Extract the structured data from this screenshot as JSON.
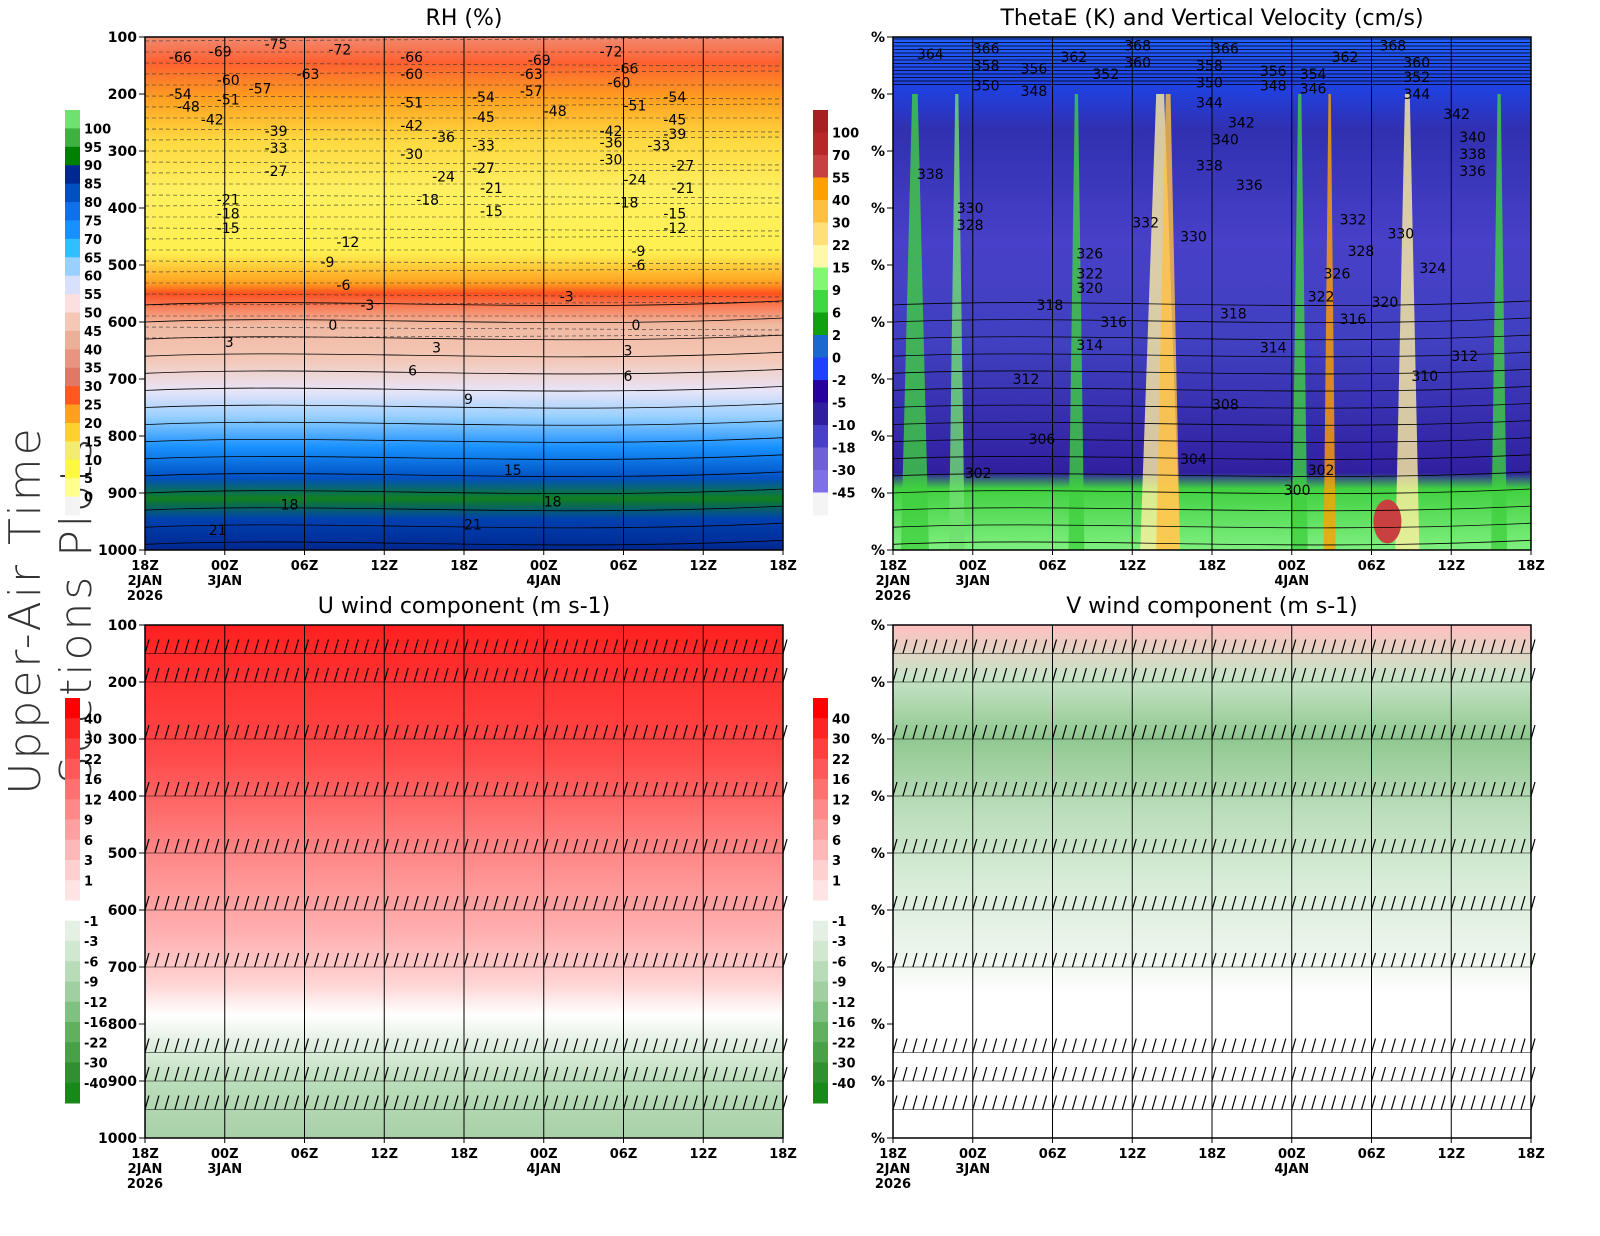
{
  "figure": {
    "side_title": "Upper-Air Time Sections Plots"
  },
  "time_ticks": [
    "18Z",
    "00Z",
    "06Z",
    "12Z",
    "18Z",
    "00Z",
    "06Z",
    "12Z",
    "18Z"
  ],
  "date_labels": [
    {
      "tick": 0,
      "lines": [
        "2JAN",
        "2026"
      ]
    },
    {
      "tick": 1,
      "lines": [
        "3JAN"
      ]
    },
    {
      "tick": 5,
      "lines": [
        "4JAN"
      ]
    }
  ],
  "chart_data": [
    {
      "type": "heatmap",
      "title": "RH (%)",
      "y_ticks": [
        "100",
        "200",
        "300",
        "400",
        "500",
        "600",
        "700",
        "800",
        "900",
        "1000"
      ],
      "ylim": [
        100,
        1000
      ],
      "colorbar": {
        "labels": [
          "100",
          "95",
          "90",
          "85",
          "80",
          "75",
          "70",
          "65",
          "60",
          "55",
          "50",
          "45",
          "40",
          "35",
          "30",
          "25",
          "20",
          "15",
          "10",
          "5",
          "0"
        ],
        "colors": [
          "#70e070",
          "#40b040",
          "#008000",
          "#002890",
          "#0050c0",
          "#1070e8",
          "#1890ff",
          "#30c0ff",
          "#98d0ff",
          "#d8e0fc",
          "#fce0e0",
          "#f4c8b4",
          "#ecb098",
          "#e89480",
          "#e07868",
          "#ff5820",
          "#ffa020",
          "#ffd030",
          "#f4ec70",
          "#fff840",
          "#ffff90",
          "#f4f4f4"
        ]
      },
      "contour_labels": [
        {
          "t": 0.3,
          "p": 135,
          "v": "-66"
        },
        {
          "t": 0.8,
          "p": 125,
          "v": "-69"
        },
        {
          "t": 1.5,
          "p": 112,
          "v": "-75"
        },
        {
          "t": 2.3,
          "p": 122,
          "v": "-72"
        },
        {
          "t": 1.9,
          "p": 165,
          "v": "-63"
        },
        {
          "t": 0.9,
          "p": 175,
          "v": "-60"
        },
        {
          "t": 1.3,
          "p": 190,
          "v": "-57"
        },
        {
          "t": 0.3,
          "p": 200,
          "v": "-54"
        },
        {
          "t": 0.9,
          "p": 210,
          "v": "-51"
        },
        {
          "t": 0.4,
          "p": 222,
          "v": "-48"
        },
        {
          "t": 0.7,
          "p": 245,
          "v": "-42"
        },
        {
          "t": 1.5,
          "p": 265,
          "v": "-39"
        },
        {
          "t": 1.5,
          "p": 295,
          "v": "-33"
        },
        {
          "t": 1.5,
          "p": 335,
          "v": "-27"
        },
        {
          "t": 3.2,
          "p": 135,
          "v": "-66"
        },
        {
          "t": 3.2,
          "p": 165,
          "v": "-60"
        },
        {
          "t": 3.2,
          "p": 215,
          "v": "-51"
        },
        {
          "t": 3.2,
          "p": 255,
          "v": "-42"
        },
        {
          "t": 3.6,
          "p": 275,
          "v": "-36"
        },
        {
          "t": 3.2,
          "p": 305,
          "v": "-30"
        },
        {
          "t": 3.6,
          "p": 345,
          "v": "-24"
        },
        {
          "t": 3.4,
          "p": 385,
          "v": "-18"
        },
        {
          "t": 4.1,
          "p": 205,
          "v": "-54"
        },
        {
          "t": 4.1,
          "p": 240,
          "v": "-45"
        },
        {
          "t": 4.1,
          "p": 290,
          "v": "-33"
        },
        {
          "t": 4.1,
          "p": 330,
          "v": "-27"
        },
        {
          "t": 4.2,
          "p": 365,
          "v": "-21"
        },
        {
          "t": 4.2,
          "p": 405,
          "v": "-15"
        },
        {
          "t": 4.8,
          "p": 140,
          "v": "-69"
        },
        {
          "t": 4.7,
          "p": 165,
          "v": "-63"
        },
        {
          "t": 4.7,
          "p": 195,
          "v": "-57"
        },
        {
          "t": 5.0,
          "p": 230,
          "v": "-48"
        },
        {
          "t": 5.7,
          "p": 125,
          "v": "-72"
        },
        {
          "t": 5.9,
          "p": 155,
          "v": "-66"
        },
        {
          "t": 5.8,
          "p": 180,
          "v": "-60"
        },
        {
          "t": 6.0,
          "p": 220,
          "v": "-51"
        },
        {
          "t": 6.5,
          "p": 205,
          "v": "-54"
        },
        {
          "t": 6.5,
          "p": 245,
          "v": "-45"
        },
        {
          "t": 6.5,
          "p": 270,
          "v": "-39"
        },
        {
          "t": 6.3,
          "p": 290,
          "v": "-33"
        },
        {
          "t": 6.6,
          "p": 325,
          "v": "-27"
        },
        {
          "t": 5.7,
          "p": 265,
          "v": "-42"
        },
        {
          "t": 5.7,
          "p": 285,
          "v": "-36"
        },
        {
          "t": 5.7,
          "p": 315,
          "v": "-30"
        },
        {
          "t": 6.0,
          "p": 350,
          "v": "-24"
        },
        {
          "t": 6.6,
          "p": 365,
          "v": "-21"
        },
        {
          "t": 5.9,
          "p": 390,
          "v": "-18"
        },
        {
          "t": 6.5,
          "p": 410,
          "v": "-15"
        },
        {
          "t": 6.5,
          "p": 435,
          "v": "-12"
        },
        {
          "t": 6.1,
          "p": 475,
          "v": "-9"
        },
        {
          "t": 6.1,
          "p": 500,
          "v": "-6"
        },
        {
          "t": 0.9,
          "p": 385,
          "v": "-21"
        },
        {
          "t": 0.9,
          "p": 410,
          "v": "-18"
        },
        {
          "t": 0.9,
          "p": 435,
          "v": "-15"
        },
        {
          "t": 2.4,
          "p": 460,
          "v": "-12"
        },
        {
          "t": 2.2,
          "p": 495,
          "v": "-9"
        },
        {
          "t": 2.4,
          "p": 535,
          "v": "-6"
        },
        {
          "t": 2.7,
          "p": 570,
          "v": "-3"
        },
        {
          "t": 5.2,
          "p": 555,
          "v": "-3"
        },
        {
          "t": 2.3,
          "p": 605,
          "v": "0"
        },
        {
          "t": 6.1,
          "p": 605,
          "v": "0"
        },
        {
          "t": 1.0,
          "p": 635,
          "v": "3"
        },
        {
          "t": 3.6,
          "p": 645,
          "v": "3"
        },
        {
          "t": 6.0,
          "p": 650,
          "v": "3"
        },
        {
          "t": 3.3,
          "p": 685,
          "v": "6"
        },
        {
          "t": 6.0,
          "p": 695,
          "v": "6"
        },
        {
          "t": 4.0,
          "p": 735,
          "v": "9"
        },
        {
          "t": 4.5,
          "p": 860,
          "v": "15"
        },
        {
          "t": 1.7,
          "p": 920,
          "v": "18"
        },
        {
          "t": 5.0,
          "p": 915,
          "v": "18"
        },
        {
          "t": 0.8,
          "p": 965,
          "v": "21"
        },
        {
          "t": 4.0,
          "p": 955,
          "v": "21"
        }
      ]
    },
    {
      "type": "heatmap",
      "title": "ThetaE (K) and Vertical Velocity (cm/s)",
      "y_ticks": [
        "%",
        "%",
        "%",
        "%",
        "%",
        "%",
        "%",
        "%",
        "%",
        "%"
      ],
      "colorbar": {
        "labels": [
          "100",
          "70",
          "55",
          "40",
          "30",
          "22",
          "15",
          "9",
          "6",
          "2",
          "0",
          "-2",
          "-5",
          "-10",
          "-18",
          "-30",
          "-45"
        ],
        "colors": [
          "#a82020",
          "#b82828",
          "#c84040",
          "#ffa000",
          "#ffc040",
          "#ffe078",
          "#fff8a8",
          "#80f870",
          "#40d840",
          "#10a010",
          "#1868d0",
          "#2040ff",
          "#2800a0",
          "#3020a0",
          "#4840c8",
          "#7060d8",
          "#8070e8",
          "#f4f4f4"
        ]
      },
      "contour_labels": [
        {
          "t": 0.3,
          "p": 130,
          "v": "364"
        },
        {
          "t": 1.0,
          "p": 120,
          "v": "366"
        },
        {
          "t": 1.0,
          "p": 150,
          "v": "358"
        },
        {
          "t": 1.6,
          "p": 155,
          "v": "356"
        },
        {
          "t": 2.1,
          "p": 135,
          "v": "362"
        },
        {
          "t": 2.5,
          "p": 165,
          "v": "352"
        },
        {
          "t": 2.9,
          "p": 115,
          "v": "368"
        },
        {
          "t": 2.9,
          "p": 145,
          "v": "360"
        },
        {
          "t": 1.0,
          "p": 185,
          "v": "350"
        },
        {
          "t": 1.6,
          "p": 195,
          "v": "348"
        },
        {
          "t": 4.0,
          "p": 120,
          "v": "366"
        },
        {
          "t": 3.8,
          "p": 150,
          "v": "358"
        },
        {
          "t": 3.8,
          "p": 180,
          "v": "350"
        },
        {
          "t": 4.6,
          "p": 160,
          "v": "356"
        },
        {
          "t": 4.6,
          "p": 185,
          "v": "348"
        },
        {
          "t": 5.1,
          "p": 165,
          "v": "354"
        },
        {
          "t": 5.1,
          "p": 190,
          "v": "346"
        },
        {
          "t": 5.5,
          "p": 135,
          "v": "362"
        },
        {
          "t": 3.8,
          "p": 215,
          "v": "344"
        },
        {
          "t": 4.2,
          "p": 250,
          "v": "342"
        },
        {
          "t": 4.0,
          "p": 280,
          "v": "340"
        },
        {
          "t": 3.8,
          "p": 325,
          "v": "338"
        },
        {
          "t": 4.3,
          "p": 360,
          "v": "336"
        },
        {
          "t": 6.1,
          "p": 115,
          "v": "368"
        },
        {
          "t": 6.4,
          "p": 145,
          "v": "360"
        },
        {
          "t": 6.4,
          "p": 170,
          "v": "352"
        },
        {
          "t": 6.4,
          "p": 200,
          "v": "344"
        },
        {
          "t": 6.9,
          "p": 235,
          "v": "342"
        },
        {
          "t": 7.1,
          "p": 275,
          "v": "340"
        },
        {
          "t": 7.1,
          "p": 305,
          "v": "338"
        },
        {
          "t": 7.1,
          "p": 335,
          "v": "336"
        },
        {
          "t": 5.6,
          "p": 420,
          "v": "332"
        },
        {
          "t": 6.2,
          "p": 445,
          "v": "330"
        },
        {
          "t": 5.7,
          "p": 475,
          "v": "328"
        },
        {
          "t": 5.4,
          "p": 515,
          "v": "326"
        },
        {
          "t": 6.6,
          "p": 505,
          "v": "324"
        },
        {
          "t": 5.2,
          "p": 555,
          "v": "322"
        },
        {
          "t": 6.0,
          "p": 565,
          "v": "320"
        },
        {
          "t": 5.6,
          "p": 595,
          "v": "316"
        },
        {
          "t": 7.0,
          "p": 660,
          "v": "312"
        },
        {
          "t": 6.5,
          "p": 695,
          "v": "310"
        },
        {
          "t": 5.2,
          "p": 860,
          "v": "302"
        },
        {
          "t": 4.9,
          "p": 895,
          "v": "300"
        },
        {
          "t": 0.3,
          "p": 340,
          "v": "338"
        },
        {
          "t": 0.8,
          "p": 400,
          "v": "330"
        },
        {
          "t": 0.8,
          "p": 430,
          "v": "328"
        },
        {
          "t": 3.0,
          "p": 425,
          "v": "332"
        },
        {
          "t": 3.6,
          "p": 450,
          "v": "330"
        },
        {
          "t": 2.3,
          "p": 480,
          "v": "326"
        },
        {
          "t": 2.3,
          "p": 515,
          "v": "322"
        },
        {
          "t": 2.3,
          "p": 540,
          "v": "320"
        },
        {
          "t": 1.8,
          "p": 570,
          "v": "318"
        },
        {
          "t": 4.1,
          "p": 585,
          "v": "318"
        },
        {
          "t": 2.6,
          "p": 600,
          "v": "316"
        },
        {
          "t": 2.3,
          "p": 640,
          "v": "314"
        },
        {
          "t": 4.6,
          "p": 645,
          "v": "314"
        },
        {
          "t": 1.5,
          "p": 700,
          "v": "312"
        },
        {
          "t": 4.0,
          "p": 745,
          "v": "308"
        },
        {
          "t": 1.7,
          "p": 805,
          "v": "306"
        },
        {
          "t": 3.6,
          "p": 840,
          "v": "304"
        },
        {
          "t": 0.9,
          "p": 865,
          "v": "302"
        }
      ]
    },
    {
      "type": "heatmap",
      "title": "U wind component (m s-1)",
      "y_ticks": [
        "100",
        "200",
        "300",
        "400",
        "500",
        "600",
        "700",
        "800",
        "900",
        "1000"
      ],
      "ylim": [
        100,
        1000
      ],
      "colorbar": {
        "labels": [
          "40",
          "30",
          "22",
          "16",
          "12",
          "9",
          "6",
          "3",
          "1",
          "-1",
          "-3",
          "-6",
          "-9",
          "-12",
          "-16",
          "-22",
          "-30",
          "-40"
        ],
        "colors": [
          "#ff0000",
          "#ff2424",
          "#ff4040",
          "#ff5858",
          "#ff7070",
          "#ff8888",
          "#ffa0a0",
          "#ffb8b8",
          "#ffd0d0",
          "#ffe4e4",
          "#ffffff",
          "#e4f0e4",
          "#d0e8d0",
          "#b8dcb8",
          "#a0d0a0",
          "#80c080",
          "#60b060",
          "#48a048",
          "#309030",
          "#188818"
        ]
      }
    },
    {
      "type": "heatmap",
      "title": "V wind component (m s-1)",
      "y_ticks": [
        "%",
        "%",
        "%",
        "%",
        "%",
        "%",
        "%",
        "%",
        "%",
        "%"
      ],
      "colorbar": {
        "labels": [
          "40",
          "30",
          "22",
          "16",
          "12",
          "9",
          "6",
          "3",
          "1",
          "-1",
          "-3",
          "-6",
          "-9",
          "-12",
          "-16",
          "-22",
          "-30",
          "-40"
        ],
        "colors": [
          "#ff0000",
          "#ff2424",
          "#ff4040",
          "#ff5858",
          "#ff7070",
          "#ff8888",
          "#ffa0a0",
          "#ffb8b8",
          "#ffd0d0",
          "#ffe4e4",
          "#ffffff",
          "#e4f0e4",
          "#d0e8d0",
          "#b8dcb8",
          "#a0d0a0",
          "#80c080",
          "#60b060",
          "#48a048",
          "#309030",
          "#188818"
        ]
      }
    }
  ]
}
